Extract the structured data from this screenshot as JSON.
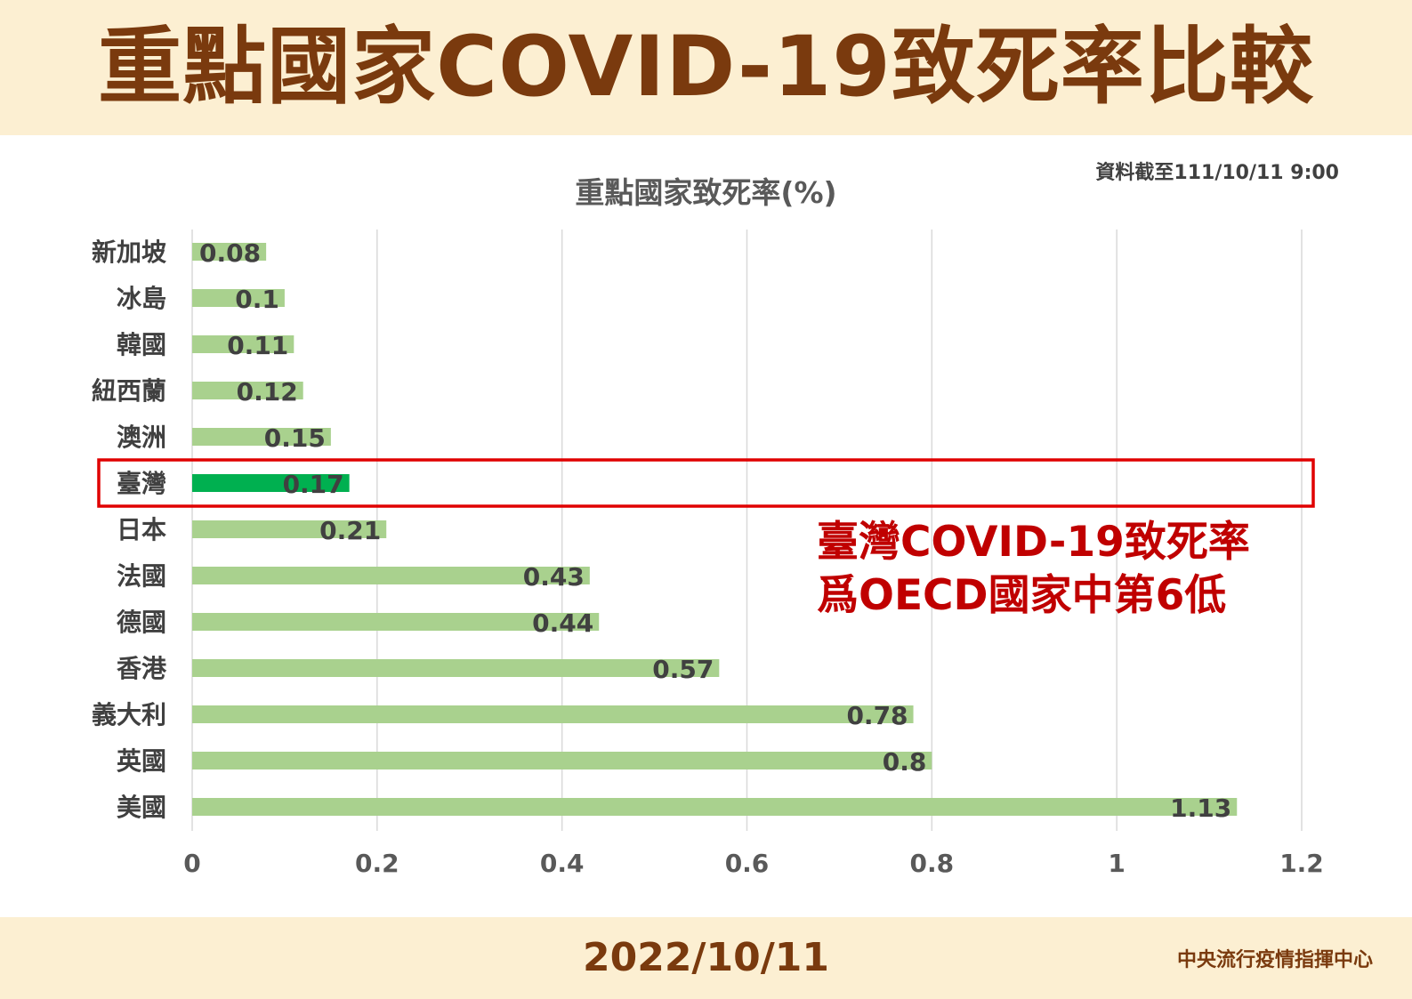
{
  "header": {
    "title": "重點國家COVID-19致死率比較"
  },
  "data_date": "資料截至111/10/11 9:00",
  "callout": {
    "line1": "臺灣COVID-19致死率",
    "line2": "爲OECD國家中第6低"
  },
  "footer": {
    "date": "2022/10/11",
    "org": "中央流行疫情指揮中心"
  },
  "colors": {
    "bar": "#a9d18e",
    "highlight_bar": "#00b050",
    "highlight_box": "#e00000",
    "gridline": "#d9d9d9"
  },
  "chart_data": {
    "type": "bar",
    "orientation": "horizontal",
    "title": "重點國家致死率(%)",
    "categories": [
      "新加坡",
      "冰島",
      "韓國",
      "紐西蘭",
      "澳洲",
      "臺灣",
      "日本",
      "法國",
      "德國",
      "香港",
      "義大利",
      "英國",
      "美國"
    ],
    "values": [
      0.08,
      0.1,
      0.11,
      0.12,
      0.15,
      0.17,
      0.21,
      0.43,
      0.44,
      0.57,
      0.78,
      0.8,
      1.13
    ],
    "value_labels": [
      "0.08",
      "0.1",
      "0.11",
      "0.12",
      "0.15",
      "0.17",
      "0.21",
      "0.43",
      "0.44",
      "0.57",
      "0.78",
      "0.8",
      "1.13"
    ],
    "highlight": "臺灣",
    "xlim": [
      0,
      1.2
    ],
    "xticks": [
      0,
      0.2,
      0.4,
      0.6,
      0.8,
      1,
      1.2
    ],
    "xtick_labels": [
      "0",
      "0.2",
      "0.4",
      "0.6",
      "0.8",
      "1",
      "1.2"
    ],
    "grid": true,
    "legend": "none"
  }
}
